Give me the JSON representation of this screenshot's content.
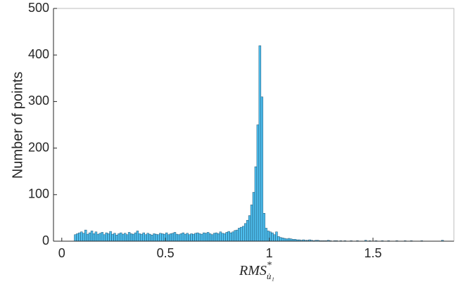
{
  "chart_data": {
    "type": "histogram",
    "ylabel": "Number of points",
    "xlabel": "RMS",
    "xlabel_sup": "*",
    "xlabel_sub": "u̇₁",
    "color": "#4dbeee",
    "edgecolor": "#1f4e6b",
    "xlim": [
      -0.04,
      1.89
    ],
    "xticks": [
      0,
      0.5,
      1,
      1.5
    ],
    "ylim": [
      0,
      500
    ],
    "yticks": [
      0,
      100,
      200,
      300,
      400,
      500
    ],
    "grid": false,
    "bins": [
      0.06,
      0.07,
      0.08,
      0.09,
      0.1,
      0.11,
      0.12,
      0.13,
      0.14,
      0.15,
      0.16,
      0.17,
      0.18,
      0.19,
      0.2,
      0.21,
      0.22,
      0.23,
      0.24,
      0.25,
      0.26,
      0.27,
      0.28,
      0.29,
      0.3,
      0.31,
      0.32,
      0.33,
      0.34,
      0.35,
      0.36,
      0.37,
      0.38,
      0.39,
      0.4,
      0.41,
      0.42,
      0.43,
      0.44,
      0.45,
      0.46,
      0.47,
      0.48,
      0.49,
      0.5,
      0.51,
      0.52,
      0.53,
      0.54,
      0.55,
      0.56,
      0.57,
      0.58,
      0.59,
      0.6,
      0.61,
      0.62,
      0.63,
      0.64,
      0.65,
      0.66,
      0.67,
      0.68,
      0.69,
      0.7,
      0.71,
      0.72,
      0.73,
      0.74,
      0.75,
      0.76,
      0.77,
      0.78,
      0.79,
      0.8,
      0.81,
      0.82,
      0.83,
      0.84,
      0.85,
      0.86,
      0.87,
      0.88,
      0.89,
      0.9,
      0.91,
      0.92,
      0.93,
      0.94,
      0.95,
      0.96,
      0.97,
      0.98,
      0.99,
      1.0,
      1.01,
      1.02,
      1.03,
      1.04,
      1.05,
      1.06,
      1.07,
      1.08,
      1.09,
      1.1,
      1.11,
      1.12,
      1.13,
      1.14,
      1.15,
      1.16,
      1.17,
      1.18,
      1.19,
      1.2,
      1.21,
      1.22,
      1.23,
      1.24,
      1.25,
      1.26,
      1.27,
      1.28,
      1.29,
      1.3,
      1.31,
      1.32,
      1.33,
      1.34,
      1.35,
      1.36,
      1.37,
      1.38,
      1.39,
      1.4,
      1.41,
      1.42,
      1.43,
      1.44,
      1.45,
      1.46,
      1.47,
      1.48,
      1.49,
      1.5,
      1.51,
      1.52,
      1.53,
      1.54,
      1.55,
      1.56,
      1.57,
      1.58,
      1.59,
      1.6,
      1.61,
      1.62,
      1.63,
      1.64,
      1.65,
      1.66,
      1.67,
      1.68,
      1.69,
      1.7,
      1.71,
      1.72,
      1.73,
      1.74,
      1.75,
      1.76,
      1.77,
      1.78,
      1.79,
      1.8,
      1.81,
      1.82,
      1.83,
      1.84,
      1.85
    ],
    "values": [
      14,
      16,
      18,
      20,
      17,
      24,
      15,
      18,
      22,
      16,
      20,
      15,
      17,
      19,
      14,
      18,
      16,
      21,
      15,
      17,
      13,
      16,
      18,
      15,
      17,
      14,
      19,
      16,
      15,
      18,
      22,
      16,
      15,
      18,
      14,
      17,
      15,
      13,
      16,
      15,
      14,
      17,
      16,
      15,
      18,
      14,
      16,
      17,
      19,
      15,
      14,
      16,
      18,
      15,
      17,
      14,
      16,
      15,
      17,
      18,
      16,
      15,
      18,
      17,
      19,
      16,
      14,
      17,
      18,
      16,
      20,
      17,
      16,
      19,
      21,
      18,
      20,
      23,
      24,
      28,
      30,
      32,
      38,
      45,
      55,
      78,
      105,
      160,
      250,
      420,
      310,
      60,
      28,
      22,
      20,
      18,
      14,
      20,
      10,
      8,
      7,
      6,
      5,
      6,
      5,
      4,
      4,
      3,
      3,
      2,
      3,
      2,
      2,
      3,
      2,
      1,
      2,
      2,
      1,
      1,
      1,
      1,
      2,
      1,
      0,
      1,
      1,
      0,
      1,
      0,
      1,
      0,
      0,
      1,
      0,
      0,
      1,
      0,
      0,
      0,
      2,
      0,
      1,
      0,
      0,
      1,
      0,
      0,
      1,
      0,
      0,
      1,
      0,
      0,
      0,
      1,
      0,
      0,
      0,
      1,
      0,
      0,
      1,
      0,
      0,
      0,
      0,
      1,
      0,
      0,
      0,
      0,
      0,
      0,
      0,
      0,
      0,
      2,
      0
    ]
  }
}
